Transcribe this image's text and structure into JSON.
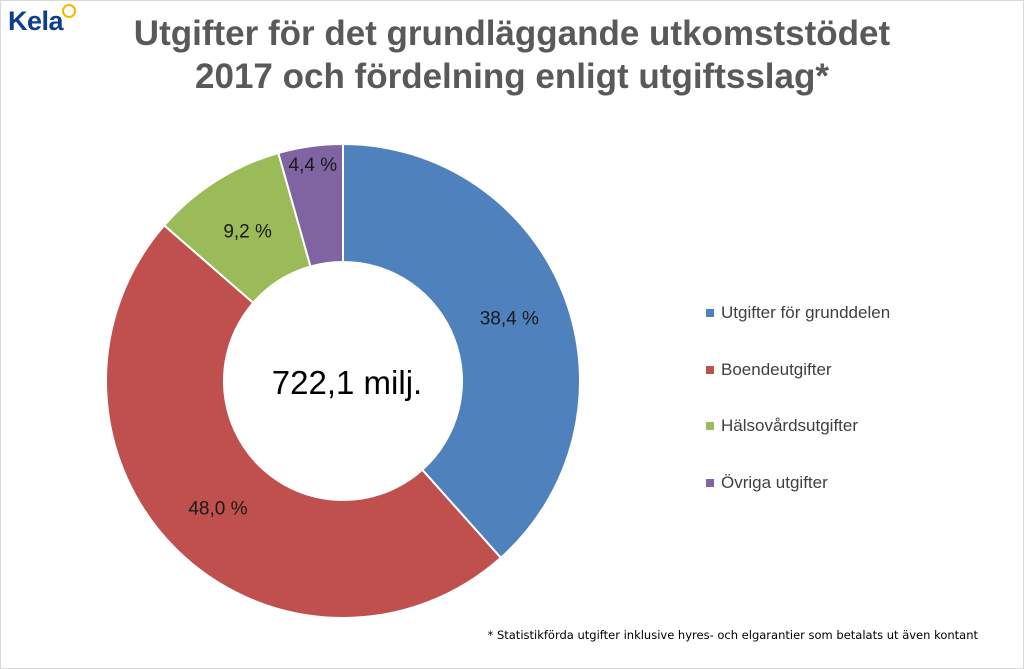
{
  "logo": {
    "text": "Kela"
  },
  "title": {
    "line1": "Utgifter för det grundläggande utkomststödet",
    "line2": "2017 och fördelning enligt utgiftsslag*"
  },
  "chart_data": {
    "type": "pie",
    "donut": true,
    "center_label": "722,1 milj.",
    "categories": [
      "Utgifter för grunddelen",
      "Boendeutgifter",
      "Hälsovårdsutgifter",
      "Övriga utgifter"
    ],
    "values": [
      38.4,
      48.0,
      9.2,
      4.4
    ],
    "data_labels": [
      "38,4 %",
      "48,0 %",
      "9,2 %",
      "4,4 %"
    ],
    "colors": [
      "#4f81bd",
      "#c0504d",
      "#9bbb59",
      "#8064a2"
    ],
    "legend_position": "right",
    "start_angle_deg": 0,
    "direction": "clockwise"
  },
  "footnote": "* Statistikförda utgifter inklusive hyres- och elgarantier som betalats ut även kontant"
}
